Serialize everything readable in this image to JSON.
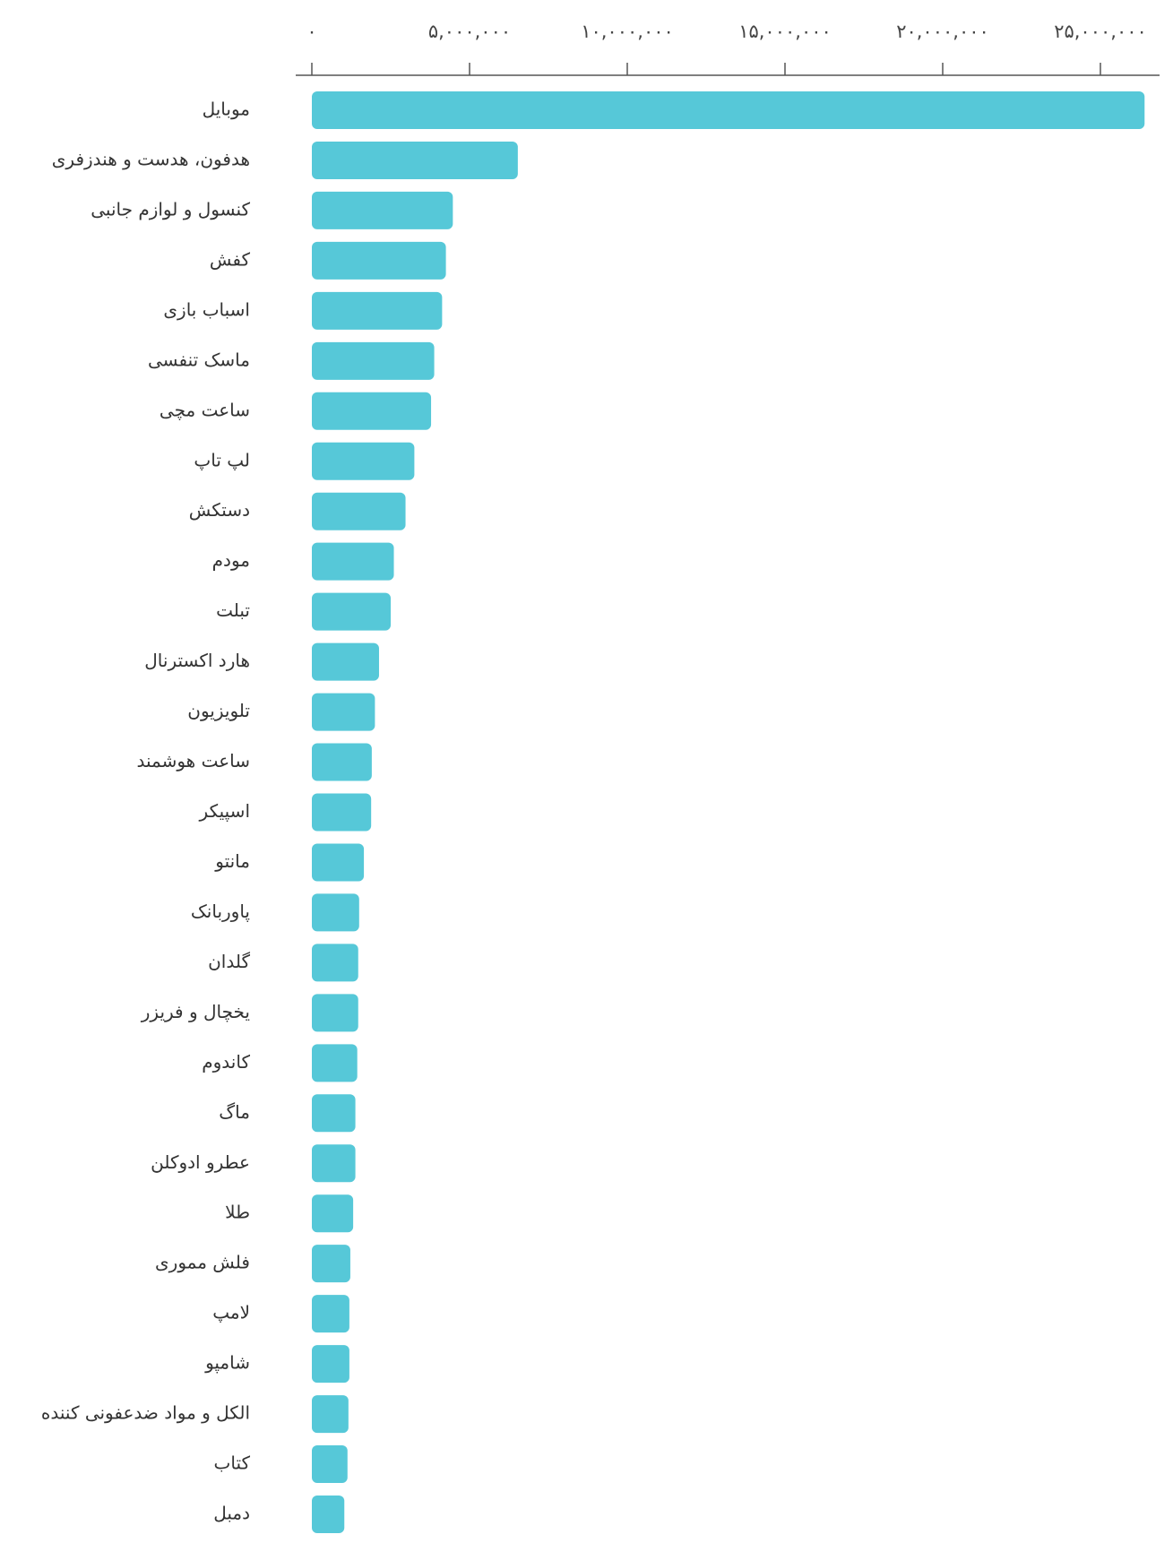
{
  "chart_data": {
    "type": "bar",
    "orientation": "horizontal",
    "color": "#56c8d8",
    "categories": [
      "موبایل",
      "هدفون، هدست و هندزفری",
      "کنسول و لوازم جانبی",
      "کفش",
      "اسباب بازی",
      "ماسک تنفسی",
      "ساعت مچی",
      "لپ تاپ",
      "دستکش",
      "مودم",
      "تبلت",
      "هارد اکسترنال",
      "تلویزیون",
      "ساعت هوشمند",
      "اسپیکر",
      "مانتو",
      "پاوربانک",
      "گلدان",
      "یخچال و فریزر",
      "کاندوم",
      "ماگ",
      "عطرو ادوکلن",
      "طلا",
      "فلش مموری",
      "لامپ",
      "شامپو",
      "الکل و مواد ضدعفونی کننده",
      "کتاب",
      "دمبل"
    ],
    "values": [
      26400000,
      6530000,
      4470000,
      4250000,
      4130000,
      3880000,
      3780000,
      3250000,
      2970000,
      2600000,
      2500000,
      2130000,
      2000000,
      1900000,
      1880000,
      1650000,
      1500000,
      1470000,
      1470000,
      1440000,
      1380000,
      1380000,
      1310000,
      1220000,
      1190000,
      1190000,
      1160000,
      1130000,
      1030000
    ],
    "xlim": [
      0,
      27000000
    ],
    "xticks": [
      {
        "value": 0,
        "label": "۰"
      },
      {
        "value": 5000000,
        "label": "۵,۰۰۰,۰۰۰"
      },
      {
        "value": 10000000,
        "label": "۱۰,۰۰۰,۰۰۰"
      },
      {
        "value": 15000000,
        "label": "۱۵,۰۰۰,۰۰۰"
      },
      {
        "value": 20000000,
        "label": "۲۰,۰۰۰,۰۰۰"
      },
      {
        "value": 25000000,
        "label": "۲۵,۰۰۰,۰۰۰"
      }
    ]
  }
}
